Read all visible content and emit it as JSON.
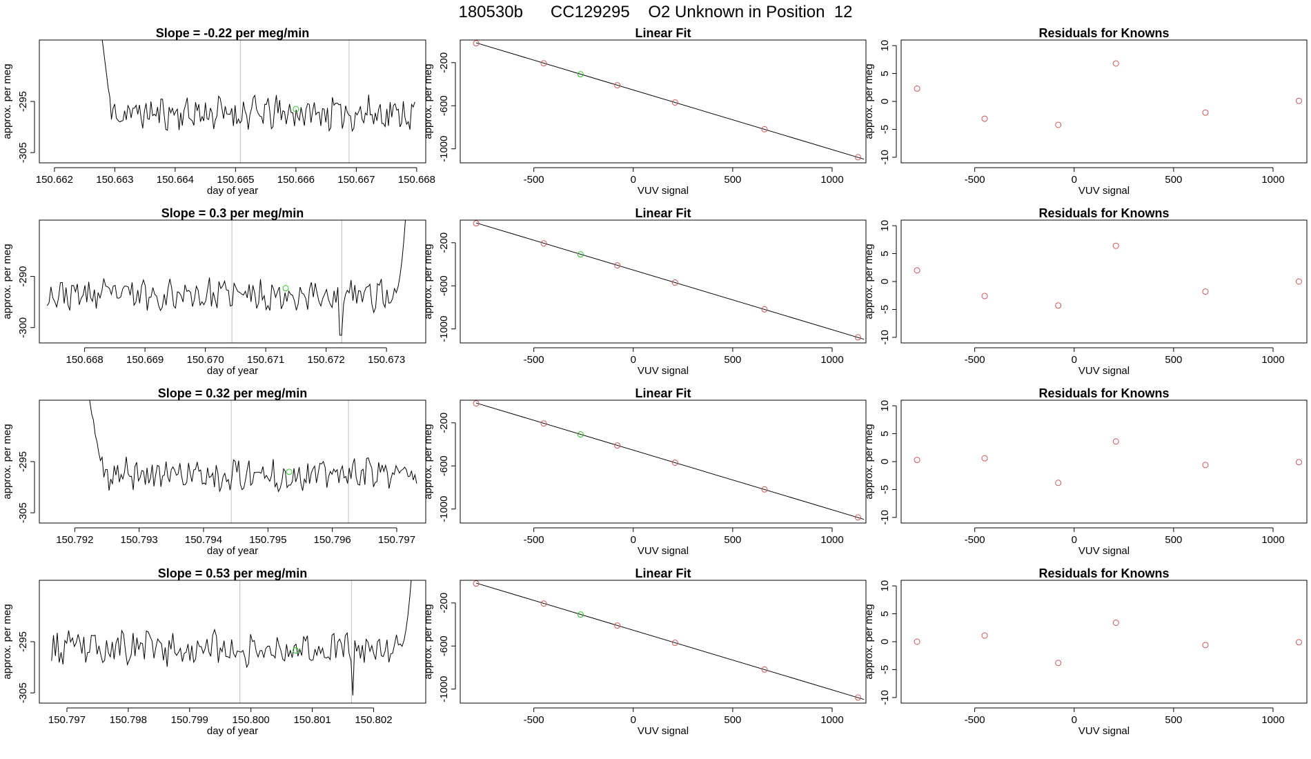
{
  "header": {
    "title": "180530b      CC129295    O2 Unknown in Position  12"
  },
  "colors": {
    "trace": "#000000",
    "marker_line": "#bebebe",
    "known_point": "#cd5555",
    "unknown_point": "#22cc22",
    "frame": "#000000"
  },
  "chart_data": [
    {
      "panel": "row-1-time-series",
      "type": "line",
      "title": "Slope =  -0.22  per meg/min",
      "xlabel": "day of year",
      "ylabel": "approx. per meg",
      "xlim": [
        150.66175,
        150.66815
      ],
      "ylim": [
        -307,
        -283
      ],
      "xticks": [
        150.662,
        150.663,
        150.664,
        150.665,
        150.666,
        150.667,
        150.668
      ],
      "xtick_labels": [
        "150.662",
        "150.663",
        "150.664",
        "150.665",
        "150.666",
        "150.667",
        "150.668"
      ],
      "yticks": [
        -295,
        -305
      ],
      "ytick_labels": [
        "-295",
        "-305"
      ],
      "grey_vlines": [
        150.66508,
        150.66688
      ],
      "unknown_point": {
        "x": 150.666,
        "y": -296.5
      },
      "trace": {
        "x_start": 150.66278,
        "x_end": 150.66797,
        "y_start": -282,
        "drop_index": 6,
        "base": -297.3,
        "amp": 2.8,
        "seed": 11
      }
    },
    {
      "panel": "row-1-linear-fit",
      "type": "scatter",
      "title": "Linear Fit",
      "xlabel": "VUV signal",
      "ylabel": "approx. per meg",
      "xlim": [
        -870,
        1170
      ],
      "ylim": [
        -1130,
        10
      ],
      "xticks": [
        -500,
        0,
        500,
        1000
      ],
      "xtick_labels": [
        "-500",
        "0",
        "500",
        "1000"
      ],
      "yticks": [
        -200,
        -600,
        -1000
      ],
      "ytick_labels": [
        "-200",
        "-600",
        "-1000"
      ],
      "fit_line": {
        "x": [
          -790,
          1160
        ],
        "y": [
          -16,
          -1096
        ]
      },
      "known_points": [
        {
          "x": -790,
          "y": -20
        },
        {
          "x": -450,
          "y": -206
        },
        {
          "x": -80,
          "y": -410
        },
        {
          "x": 210,
          "y": -570
        },
        {
          "x": 660,
          "y": -818
        },
        {
          "x": 1130,
          "y": -1078
        }
      ],
      "unknown_point": {
        "x": -265,
        "y": -308
      }
    },
    {
      "panel": "row-1-residuals",
      "type": "scatter",
      "title": "Residuals for Knowns",
      "xlabel": "VUV signal",
      "ylabel": "approx. per meg",
      "xlim": [
        -870,
        1170
      ],
      "ylim": [
        -11,
        11
      ],
      "xticks": [
        -500,
        0,
        500,
        1000
      ],
      "xtick_labels": [
        "-500",
        "0",
        "500",
        "1000"
      ],
      "yticks": [
        10,
        5,
        0,
        -5,
        -10
      ],
      "ytick_labels": [
        "10",
        "5",
        "0",
        "-5",
        "-10"
      ],
      "known_points": [
        {
          "x": -790,
          "y": 2.3
        },
        {
          "x": -450,
          "y": -3.1
        },
        {
          "x": -80,
          "y": -4.2
        },
        {
          "x": 210,
          "y": 6.8
        },
        {
          "x": 660,
          "y": -2.0
        },
        {
          "x": 1130,
          "y": 0.1
        }
      ]
    },
    {
      "panel": "row-2-time-series",
      "type": "line",
      "title": "Slope =  0.3  per meg/min",
      "xlabel": "day of year",
      "ylabel": "approx. per meg",
      "xlim": [
        150.66725,
        150.67365
      ],
      "ylim": [
        -303,
        -279
      ],
      "xticks": [
        150.668,
        150.669,
        150.67,
        150.671,
        150.672,
        150.673
      ],
      "xtick_labels": [
        "150.668",
        "150.669",
        "150.670",
        "150.671",
        "150.672",
        "150.673"
      ],
      "yticks": [
        -290,
        -300
      ],
      "ytick_labels": [
        "-290",
        "-300"
      ],
      "grey_vlines": [
        150.67044,
        150.67226
      ],
      "unknown_point": {
        "x": 150.67133,
        "y": -292.3
      },
      "trace": {
        "x_start": 150.66738,
        "x_end": 150.67332,
        "y_start": null,
        "drop_index": 0,
        "base": -293.6,
        "amp": 2.6,
        "seed": 23,
        "tail_up_to": -278,
        "dip_at": 150.67223,
        "dip_to": -301.5
      }
    },
    {
      "panel": "row-2-linear-fit",
      "type": "scatter",
      "title": "Linear Fit",
      "xlabel": "VUV signal",
      "ylabel": "approx. per meg",
      "xlim": [
        -870,
        1170
      ],
      "ylim": [
        -1130,
        10
      ],
      "xticks": [
        -500,
        0,
        500,
        1000
      ],
      "xtick_labels": [
        "-500",
        "0",
        "500",
        "1000"
      ],
      "yticks": [
        -200,
        -600,
        -1000
      ],
      "ytick_labels": [
        "-200",
        "-600",
        "-1000"
      ],
      "fit_line": {
        "x": [
          -790,
          1160
        ],
        "y": [
          -16,
          -1096
        ]
      },
      "known_points": [
        {
          "x": -790,
          "y": -20
        },
        {
          "x": -450,
          "y": -206
        },
        {
          "x": -80,
          "y": -410
        },
        {
          "x": 210,
          "y": -570
        },
        {
          "x": 660,
          "y": -818
        },
        {
          "x": 1130,
          "y": -1078
        }
      ],
      "unknown_point": {
        "x": -265,
        "y": -308
      }
    },
    {
      "panel": "row-2-residuals",
      "type": "scatter",
      "title": "Residuals for Knowns",
      "xlabel": "VUV signal",
      "ylabel": "approx. per meg",
      "xlim": [
        -870,
        1170
      ],
      "ylim": [
        -11,
        11
      ],
      "xticks": [
        -500,
        0,
        500,
        1000
      ],
      "xtick_labels": [
        "-500",
        "0",
        "500",
        "1000"
      ],
      "yticks": [
        10,
        5,
        0,
        -5,
        -10
      ],
      "ytick_labels": [
        "10",
        "5",
        "0",
        "-5",
        "-10"
      ],
      "known_points": [
        {
          "x": -790,
          "y": 2.0
        },
        {
          "x": -450,
          "y": -2.6
        },
        {
          "x": -80,
          "y": -4.3
        },
        {
          "x": 210,
          "y": 6.4
        },
        {
          "x": 660,
          "y": -1.8
        },
        {
          "x": 1130,
          "y": 0.0
        }
      ]
    },
    {
      "panel": "row-3-time-series",
      "type": "line",
      "title": "Slope =  0.32  per meg/min",
      "xlabel": "day of year",
      "ylabel": "approx. per meg",
      "xlim": [
        150.79145,
        150.79745
      ],
      "ylim": [
        -307,
        -283
      ],
      "xticks": [
        150.792,
        150.793,
        150.794,
        150.795,
        150.796,
        150.797
      ],
      "xtick_labels": [
        "150.792",
        "150.793",
        "150.794",
        "150.795",
        "150.796",
        "150.797"
      ],
      "yticks": [
        -295,
        -305
      ],
      "ytick_labels": [
        "-295",
        "-305"
      ],
      "grey_vlines": [
        150.79443,
        150.79625
      ],
      "unknown_point": {
        "x": 150.79533,
        "y": -297.0
      },
      "trace": {
        "x_start": 150.79221,
        "x_end": 150.79731,
        "y_start": -282,
        "drop_index": 8,
        "base": -297.5,
        "amp": 2.8,
        "seed": 37
      }
    },
    {
      "panel": "row-3-linear-fit",
      "type": "scatter",
      "title": "Linear Fit",
      "xlabel": "VUV signal",
      "ylabel": "approx. per meg",
      "xlim": [
        -870,
        1170
      ],
      "ylim": [
        -1130,
        10
      ],
      "xticks": [
        -500,
        0,
        500,
        1000
      ],
      "xtick_labels": [
        "-500",
        "0",
        "500",
        "1000"
      ],
      "yticks": [
        -200,
        -600,
        -1000
      ],
      "ytick_labels": [
        "-200",
        "-600",
        "-1000"
      ],
      "fit_line": {
        "x": [
          -790,
          1160
        ],
        "y": [
          -16,
          -1096
        ]
      },
      "known_points": [
        {
          "x": -790,
          "y": -20
        },
        {
          "x": -450,
          "y": -206
        },
        {
          "x": -80,
          "y": -410
        },
        {
          "x": 210,
          "y": -570
        },
        {
          "x": 660,
          "y": -818
        },
        {
          "x": 1130,
          "y": -1078
        }
      ],
      "unknown_point": {
        "x": -265,
        "y": -308
      }
    },
    {
      "panel": "row-3-residuals",
      "type": "scatter",
      "title": "Residuals for Knowns",
      "xlabel": "VUV signal",
      "ylabel": "approx. per meg",
      "xlim": [
        -870,
        1170
      ],
      "ylim": [
        -11,
        11
      ],
      "xticks": [
        -500,
        0,
        500,
        1000
      ],
      "xtick_labels": [
        "-500",
        "0",
        "500",
        "1000"
      ],
      "yticks": [
        10,
        5,
        0,
        -5,
        -10
      ],
      "ytick_labels": [
        "10",
        "5",
        "0",
        "-5",
        "-10"
      ],
      "known_points": [
        {
          "x": -790,
          "y": 0.3
        },
        {
          "x": -450,
          "y": 0.6
        },
        {
          "x": -80,
          "y": -3.8
        },
        {
          "x": 210,
          "y": 3.6
        },
        {
          "x": 660,
          "y": -0.6
        },
        {
          "x": 1130,
          "y": -0.1
        }
      ]
    },
    {
      "panel": "row-4-time-series",
      "type": "line",
      "title": "Slope =  0.53  per meg/min",
      "xlabel": "day of year",
      "ylabel": "approx. per meg",
      "xlim": [
        150.79655,
        150.80285
      ],
      "ylim": [
        -307,
        -283
      ],
      "xticks": [
        150.797,
        150.798,
        150.799,
        150.8,
        150.801,
        150.802
      ],
      "xtick_labels": [
        "150.797",
        "150.798",
        "150.799",
        "150.800",
        "150.801",
        "150.802"
      ],
      "yticks": [
        -295,
        -305
      ],
      "ytick_labels": [
        "-295",
        "-305"
      ],
      "grey_vlines": [
        150.79982,
        150.80164
      ],
      "unknown_point": {
        "x": 150.80073,
        "y": -296.7
      },
      "trace": {
        "x_start": 150.79675,
        "x_end": 150.80262,
        "y_start": null,
        "drop_index": 0,
        "base": -296.3,
        "amp": 2.8,
        "seed": 53,
        "tail_up_to": -282,
        "dip_at": 150.80166,
        "dip_to": -305.5
      }
    },
    {
      "panel": "row-4-linear-fit",
      "type": "scatter",
      "title": "Linear Fit",
      "xlabel": "VUV signal",
      "ylabel": "approx. per meg",
      "xlim": [
        -870,
        1170
      ],
      "ylim": [
        -1130,
        10
      ],
      "xticks": [
        -500,
        0,
        500,
        1000
      ],
      "xtick_labels": [
        "-500",
        "0",
        "500",
        "1000"
      ],
      "yticks": [
        -200,
        -600,
        -1000
      ],
      "ytick_labels": [
        "-200",
        "-600",
        "-1000"
      ],
      "fit_line": {
        "x": [
          -790,
          1160
        ],
        "y": [
          -16,
          -1096
        ]
      },
      "known_points": [
        {
          "x": -790,
          "y": -20
        },
        {
          "x": -450,
          "y": -206
        },
        {
          "x": -80,
          "y": -410
        },
        {
          "x": 210,
          "y": -570
        },
        {
          "x": 660,
          "y": -818
        },
        {
          "x": 1130,
          "y": -1078
        }
      ],
      "unknown_point": {
        "x": -265,
        "y": -308
      }
    },
    {
      "panel": "row-4-residuals",
      "type": "scatter",
      "title": "Residuals for Knowns",
      "xlabel": "VUV signal",
      "ylabel": "approx. per meg",
      "xlim": [
        -870,
        1170
      ],
      "ylim": [
        -11,
        11
      ],
      "xticks": [
        -500,
        0,
        500,
        1000
      ],
      "xtick_labels": [
        "-500",
        "0",
        "500",
        "1000"
      ],
      "yticks": [
        10,
        5,
        0,
        -5,
        -10
      ],
      "ytick_labels": [
        "10",
        "5",
        "0",
        "-5",
        "-10"
      ],
      "known_points": [
        {
          "x": -790,
          "y": 0.0
        },
        {
          "x": -450,
          "y": 1.1
        },
        {
          "x": -80,
          "y": -3.8
        },
        {
          "x": 210,
          "y": 3.4
        },
        {
          "x": 660,
          "y": -0.6
        },
        {
          "x": 1130,
          "y": -0.1
        }
      ]
    }
  ]
}
